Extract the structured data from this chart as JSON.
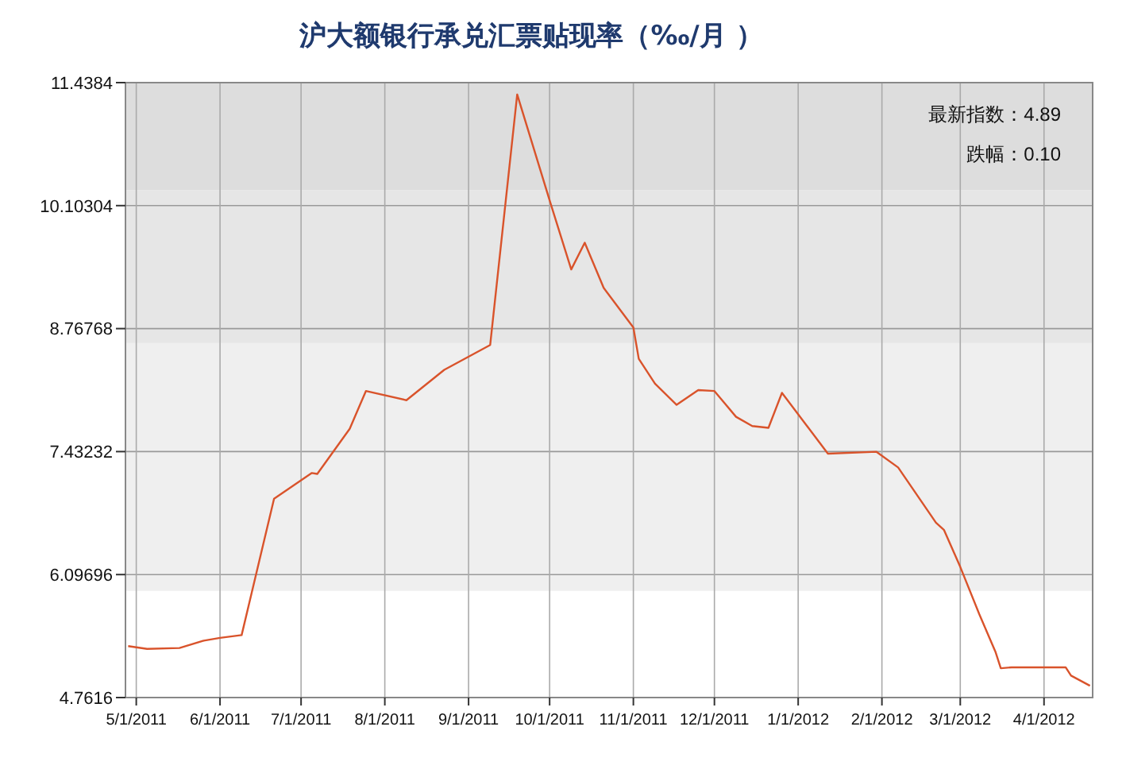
{
  "chart_data": {
    "type": "line",
    "title": "沪大额银行承兑汇票贴现率（‰/月 ）",
    "annotations": [
      "最新指数：4.89",
      "跌幅：0.10"
    ],
    "x": [
      "2011-04-28",
      "2011-05-05",
      "2011-05-17",
      "2011-05-26",
      "2011-06-01",
      "2011-06-09",
      "2011-06-21",
      "2011-07-05",
      "2011-07-07",
      "2011-07-19",
      "2011-07-25",
      "2011-08-09",
      "2011-08-23",
      "2011-09-09",
      "2011-09-19",
      "2011-10-01",
      "2011-10-09",
      "2011-10-14",
      "2011-10-21",
      "2011-11-01",
      "2011-11-03",
      "2011-11-09",
      "2011-11-17",
      "2011-11-25",
      "2011-12-01",
      "2011-12-09",
      "2011-12-15",
      "2011-12-21",
      "2011-12-26",
      "2012-01-12",
      "2012-01-30",
      "2012-02-07",
      "2012-02-14",
      "2012-02-21",
      "2012-02-24",
      "2012-03-01",
      "2012-03-08",
      "2012-03-14",
      "2012-03-16",
      "2012-03-20",
      "2012-04-09",
      "2012-04-11",
      "2012-04-18"
    ],
    "series": [
      {
        "color": "#d9532b",
        "values": [
          5.32,
          5.29,
          5.3,
          5.38,
          5.41,
          5.44,
          6.92,
          7.2,
          7.19,
          7.68,
          8.09,
          7.99,
          8.32,
          8.59,
          11.31,
          10.16,
          9.41,
          9.7,
          9.21,
          8.78,
          8.44,
          8.17,
          7.94,
          8.1,
          8.09,
          7.81,
          7.71,
          7.69,
          8.07,
          7.41,
          7.43,
          7.26,
          6.96,
          6.66,
          6.58,
          6.18,
          5.67,
          5.26,
          5.08,
          5.09,
          5.09,
          5.0,
          4.89
        ]
      }
    ],
    "xlim": [
      "2011-04-27",
      "2012-04-19"
    ],
    "xticks": [
      {
        "value": "2011-05-01",
        "label": "5/1/2011"
      },
      {
        "value": "2011-06-01",
        "label": "6/1/2011"
      },
      {
        "value": "2011-07-01",
        "label": "7/1/2011"
      },
      {
        "value": "2011-08-01",
        "label": "8/1/2011"
      },
      {
        "value": "2011-09-01",
        "label": "9/1/2011"
      },
      {
        "value": "2011-10-01",
        "label": "10/1/2011"
      },
      {
        "value": "2011-11-01",
        "label": "11/1/2011"
      },
      {
        "value": "2011-12-01",
        "label": "12/1/2011"
      },
      {
        "value": "2012-01-01",
        "label": "1/1/2012"
      },
      {
        "value": "2012-02-01",
        "label": "2/1/2012"
      },
      {
        "value": "2012-03-01",
        "label": "3/1/2012"
      },
      {
        "value": "2012-04-01",
        "label": "4/1/2012"
      }
    ],
    "ylim": [
      4.7616,
      11.4384
    ],
    "yticks": [
      4.7616,
      6.09696,
      7.43232,
      8.76768,
      10.10304,
      11.4384
    ],
    "bands": [
      {
        "axis": "y",
        "from": 5.92,
        "to": 8.61,
        "color": "#efefef"
      },
      {
        "axis": "y",
        "from": 8.61,
        "to": 10.27,
        "color": "#e6e6e6"
      },
      {
        "axis": "y",
        "from": 10.27,
        "to": 11.4384,
        "color": "#dddddd"
      }
    ],
    "grid": true,
    "line_style": "solid",
    "marker": "none"
  }
}
